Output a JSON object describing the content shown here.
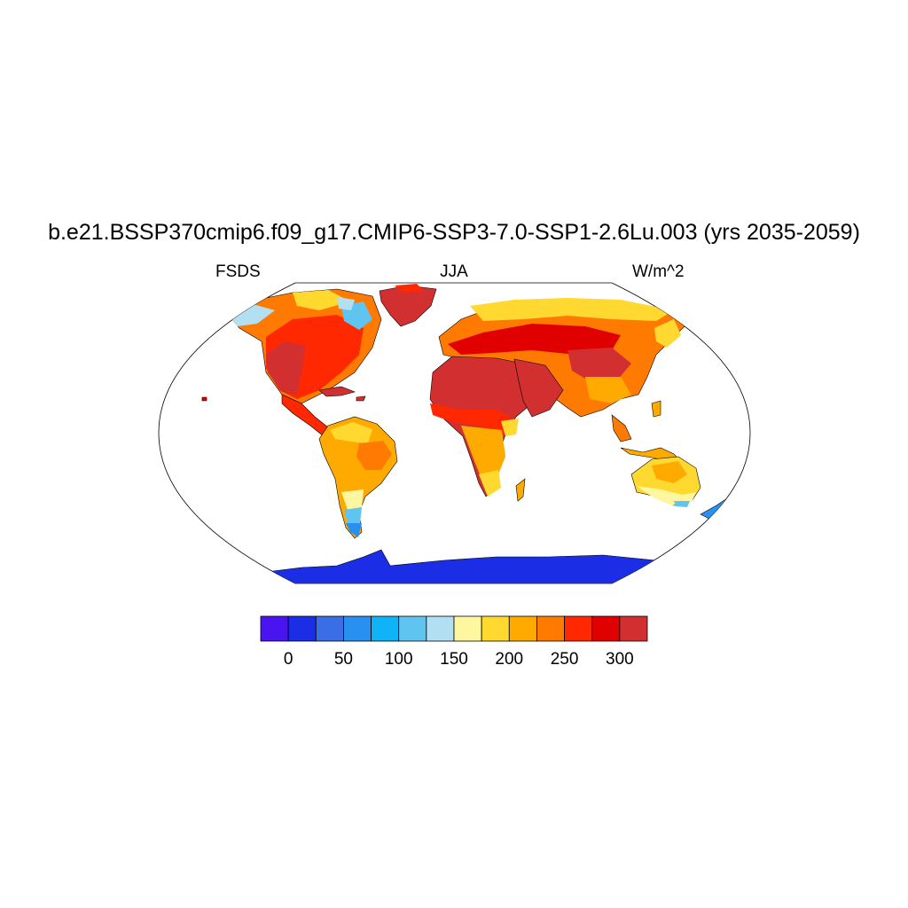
{
  "title": "b.e21.BSSP370cmip6.f09_g17.CMIP6-SSP3-7.0-SSP1-2.6Lu.003 (yrs 2035-2059)",
  "subtitle_left": "FSDS",
  "subtitle_center": "JJA",
  "subtitle_right": "W/m^2",
  "colorbar": {
    "colors": [
      "#4a14f0",
      "#1b2ee6",
      "#3a6ee6",
      "#2890f0",
      "#10b2f8",
      "#60c4f0",
      "#b2e0f2",
      "#fff6a0",
      "#ffd830",
      "#ffaa00",
      "#ff7a00",
      "#ff2800",
      "#e00000",
      "#d23030"
    ],
    "labels": [
      "0",
      "50",
      "100",
      "150",
      "200",
      "250",
      "300"
    ]
  }
}
